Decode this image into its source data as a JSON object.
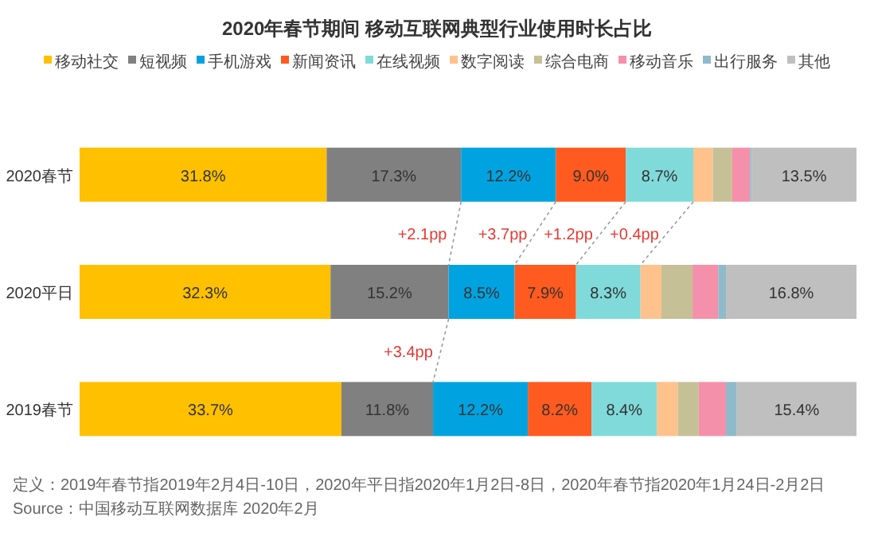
{
  "chart_data": {
    "type": "bar",
    "orientation": "horizontal",
    "stacked": true,
    "title": "2020年春节期间 移动互联网典型行业使用时长占比",
    "categories": [
      "2020春节",
      "2020平日",
      "2019春节"
    ],
    "xlim": [
      0,
      100
    ],
    "tick_labels": "y",
    "legend": "top",
    "series": [
      {
        "name": "移动社交",
        "color": "#ffc000",
        "values": [
          31.8,
          32.3,
          33.7
        ],
        "value_labels": [
          "31.8%",
          "32.3%",
          "33.7%"
        ]
      },
      {
        "name": "短视频",
        "color": "#808080",
        "values": [
          17.3,
          15.2,
          11.8
        ],
        "value_labels": [
          "17.3%",
          "15.2%",
          "11.8%"
        ]
      },
      {
        "name": "手机游戏",
        "color": "#00a3e0",
        "values": [
          12.2,
          8.5,
          12.2
        ],
        "value_labels": [
          "12.2%",
          "8.5%",
          "12.2%"
        ]
      },
      {
        "name": "新闻资讯",
        "color": "#ff5a1f",
        "values": [
          9.0,
          7.9,
          8.2
        ],
        "value_labels": [
          "9.0%",
          "7.9%",
          "8.2%"
        ]
      },
      {
        "name": "在线视频",
        "color": "#80dada",
        "values": [
          8.7,
          8.3,
          8.4
        ],
        "value_labels": [
          "8.7%",
          "8.3%",
          "8.4%"
        ]
      },
      {
        "name": "数字阅读",
        "color": "#ffc28c",
        "values": [
          2.5,
          2.7,
          2.7
        ],
        "value_labels": [
          null,
          null,
          null
        ]
      },
      {
        "name": "综合电商",
        "color": "#c6c096",
        "values": [
          2.5,
          4.0,
          2.7
        ],
        "value_labels": [
          null,
          null,
          null
        ]
      },
      {
        "name": "移动音乐",
        "color": "#f590ab",
        "values": [
          2.3,
          3.3,
          3.5
        ],
        "value_labels": [
          null,
          null,
          null
        ]
      },
      {
        "name": "出行服务",
        "color": "#8fbac9",
        "values": [
          0.2,
          1.0,
          1.4
        ],
        "value_labels": [
          null,
          null,
          null
        ]
      },
      {
        "name": "其他",
        "color": "#bfbfbf",
        "values": [
          13.5,
          16.8,
          15.4
        ],
        "value_labels": [
          "13.5%",
          "16.8%",
          "15.4%"
        ]
      }
    ],
    "annotations": [
      "+2.1pp",
      "+3.7pp",
      "+1.2pp",
      "+0.4pp",
      "+3.4pp",
      "定义：2019年春节指2019年2月4日-10日，2020年平日指2020年1月2日-8日，2020年春节指2020年1月24日-2月2日",
      "Source：中国移动互联网数据库 2020年2月"
    ]
  }
}
